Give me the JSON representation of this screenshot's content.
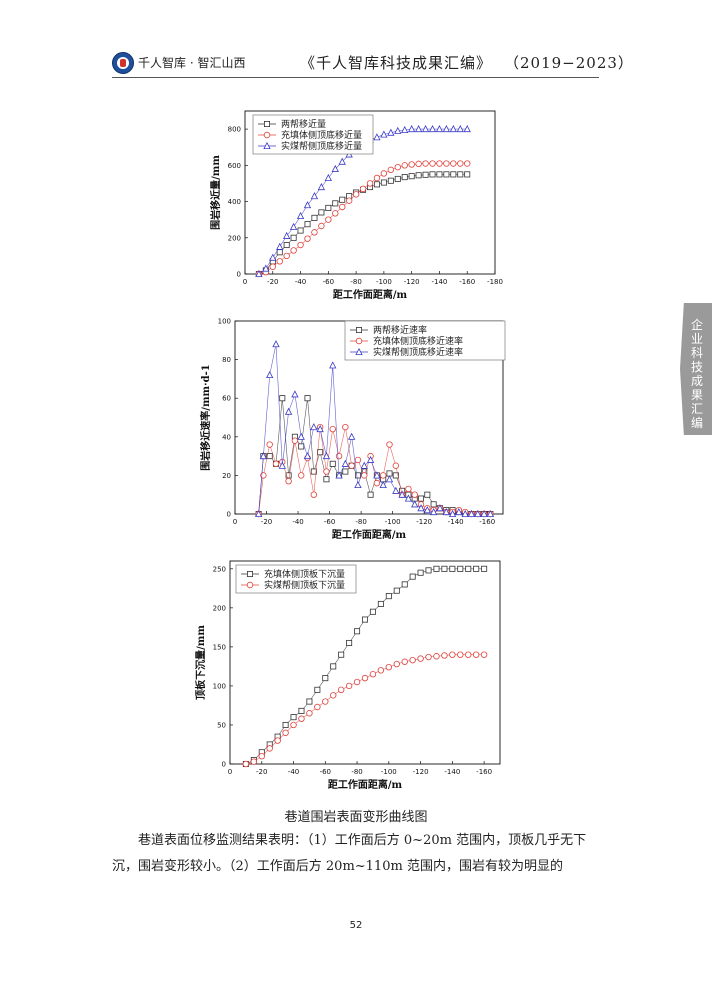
{
  "header": {
    "brand": "千人智库 · 智汇山西",
    "book_title": "《千人智库科技成果汇编》",
    "years": "（2019−2023）"
  },
  "side_tab": {
    "label": "企业科技成果汇编"
  },
  "caption": "巷道围岩表面变形曲线图",
  "paragraph": "巷道表面位移监测结果表明：（1）工作面后方 0~20m 范围内，顶板几乎无下沉，围岩变形较小。（2）工作面后方 20m~110m 范围内，围岩有较为明显的",
  "page_number": "52",
  "colors": {
    "black_series": "#333333",
    "red_series": "#e0403a",
    "blue_series": "#3a3ac8"
  },
  "chart_data": [
    {
      "type": "line",
      "xlabel": "距工作面距离/m",
      "ylabel": "围岩移近量/mm",
      "xlim": [
        0,
        -180
      ],
      "ylim": [
        0,
        900
      ],
      "xticks": [
        0,
        -20,
        -40,
        -60,
        -80,
        -100,
        -120,
        -140,
        -160,
        -180
      ],
      "yticks": [
        0,
        200,
        400,
        600,
        800
      ],
      "legend_position": "top-left",
      "x": [
        -10,
        -15,
        -20,
        -25,
        -30,
        -35,
        -40,
        -45,
        -50,
        -55,
        -60,
        -65,
        -70,
        -75,
        -80,
        -85,
        -90,
        -95,
        -100,
        -105,
        -110,
        -115,
        -120,
        -125,
        -130,
        -135,
        -140,
        -145,
        -150,
        -155,
        -160
      ],
      "series": [
        {
          "name": "两帮移近量",
          "marker": "square",
          "color": "#333333",
          "values": [
            0,
            20,
            70,
            120,
            160,
            200,
            240,
            275,
            310,
            340,
            365,
            390,
            410,
            430,
            450,
            465,
            480,
            495,
            505,
            515,
            525,
            535,
            540,
            545,
            548,
            550,
            550,
            550,
            550,
            550,
            550
          ]
        },
        {
          "name": "充填体侧顶底移近量",
          "marker": "circle",
          "color": "#e0403a",
          "values": [
            0,
            10,
            40,
            70,
            100,
            130,
            160,
            195,
            230,
            265,
            300,
            335,
            370,
            405,
            440,
            470,
            500,
            530,
            555,
            575,
            590,
            600,
            605,
            608,
            610,
            610,
            610,
            610,
            610,
            610,
            610
          ]
        },
        {
          "name": "实煤帮侧顶底移近量",
          "marker": "triangle",
          "color": "#3a3ac8",
          "values": [
            0,
            30,
            90,
            150,
            210,
            260,
            320,
            380,
            430,
            480,
            530,
            580,
            620,
            660,
            690,
            720,
            740,
            755,
            770,
            780,
            790,
            795,
            800,
            800,
            800,
            800,
            800,
            800,
            800,
            800,
            800
          ]
        }
      ]
    },
    {
      "type": "line",
      "xlabel": "距工作面距离/m",
      "ylabel": "围岩移近速率/mm·d-1",
      "xlim": [
        0,
        -170
      ],
      "ylim": [
        0,
        100
      ],
      "xticks": [
        0,
        -20,
        -40,
        -60,
        -80,
        -100,
        -120,
        -140,
        -160
      ],
      "yticks": [
        0,
        20,
        40,
        60,
        80,
        100
      ],
      "legend_position": "top-right",
      "x": [
        -15,
        -18,
        -22,
        -26,
        -30,
        -34,
        -38,
        -42,
        -46,
        -50,
        -54,
        -58,
        -62,
        -66,
        -70,
        -74,
        -78,
        -82,
        -86,
        -90,
        -94,
        -98,
        -102,
        -106,
        -110,
        -114,
        -118,
        -122,
        -126,
        -130,
        -134,
        -138,
        -142,
        -146,
        -150,
        -154,
        -158,
        -162
      ],
      "series": [
        {
          "name": "两帮移近速率",
          "marker": "square",
          "color": "#333333",
          "values": [
            0,
            30,
            30,
            26,
            60,
            20,
            40,
            35,
            60,
            22,
            32,
            18,
            26,
            20,
            22,
            25,
            20,
            22,
            10,
            20,
            18,
            21,
            20,
            12,
            10,
            8,
            8,
            10,
            5,
            3,
            2,
            2,
            1,
            0,
            0,
            0,
            0,
            0
          ]
        },
        {
          "name": "充填体侧顶底移近速率",
          "marker": "circle",
          "color": "#e0403a",
          "values": [
            0,
            20,
            36,
            26,
            27,
            17,
            38,
            20,
            29,
            10,
            45,
            22,
            44,
            30,
            45,
            25,
            28,
            20,
            30,
            16,
            20,
            36,
            25,
            10,
            13,
            10,
            5,
            3,
            2,
            3,
            1,
            1,
            2,
            1,
            0,
            0,
            0,
            0
          ]
        },
        {
          "name": "实煤帮侧顶底移近速率",
          "marker": "triangle",
          "color": "#3a3ac8",
          "values": [
            0,
            30,
            72,
            88,
            25,
            53,
            62,
            40,
            30,
            45,
            44,
            30,
            77,
            20,
            26,
            40,
            15,
            25,
            28,
            20,
            15,
            18,
            12,
            10,
            8,
            5,
            3,
            2,
            1,
            3,
            1,
            0,
            1,
            0,
            0,
            0,
            0,
            0
          ]
        }
      ]
    },
    {
      "type": "line",
      "xlabel": "距工作面距离/m",
      "ylabel": "顶板下沉量/mm",
      "xlim": [
        0,
        -170
      ],
      "ylim": [
        0,
        260
      ],
      "xticks": [
        0,
        -20,
        -40,
        -60,
        -80,
        -100,
        -120,
        -140,
        -160
      ],
      "yticks": [
        0,
        50,
        100,
        150,
        200,
        250
      ],
      "legend_position": "top-left",
      "x": [
        -10,
        -15,
        -20,
        -25,
        -30,
        -35,
        -40,
        -45,
        -50,
        -55,
        -60,
        -65,
        -70,
        -75,
        -80,
        -85,
        -90,
        -95,
        -100,
        -105,
        -110,
        -115,
        -120,
        -125,
        -130,
        -135,
        -140,
        -145,
        -150,
        -155,
        -160
      ],
      "series": [
        {
          "name": "充填体侧顶板下沉量",
          "marker": "square",
          "color": "#333333",
          "values": [
            0,
            5,
            15,
            25,
            35,
            50,
            60,
            68,
            80,
            95,
            110,
            125,
            140,
            155,
            170,
            185,
            195,
            205,
            215,
            222,
            230,
            240,
            245,
            248,
            250,
            250,
            250,
            250,
            250,
            250,
            250
          ]
        },
        {
          "name": "实煤帮侧顶板下沉量",
          "marker": "circle",
          "color": "#e0403a",
          "values": [
            0,
            3,
            10,
            20,
            30,
            40,
            50,
            58,
            65,
            73,
            80,
            88,
            95,
            100,
            105,
            110,
            115,
            120,
            124,
            128,
            131,
            133,
            135,
            137,
            138,
            139,
            140,
            140,
            140,
            140,
            140
          ]
        }
      ]
    }
  ]
}
